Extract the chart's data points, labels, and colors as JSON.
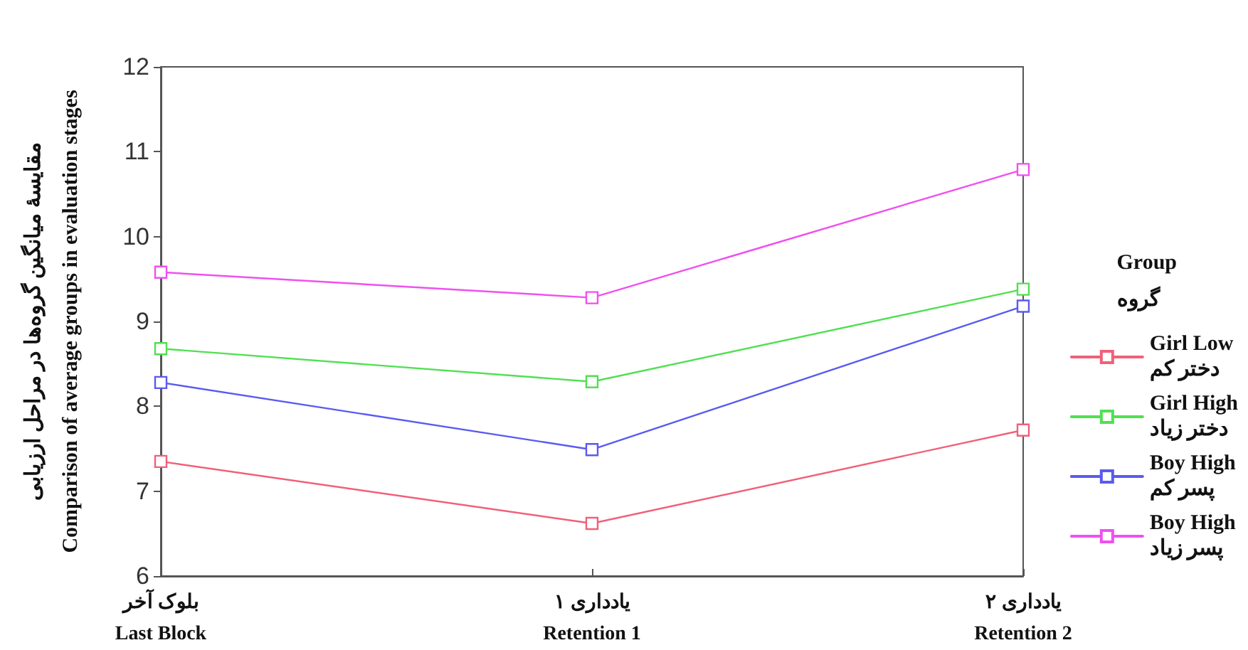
{
  "chart_data": {
    "type": "line",
    "ylabel": "مقایسهٔ میانگین گروه‌ها در مراحل ارزیابی\nComparison of average groups in evaluation stages",
    "legend_title": "Group\nگروه",
    "categories": [
      "بلوک آخر\nLast Block",
      "یادداری ۱\nRetention 1",
      "یادداری ۲\nRetention 2"
    ],
    "series": [
      {
        "name": "Girl Low\nدختر کم",
        "color": "#f0607a",
        "values": [
          7.35,
          6.62,
          7.72
        ]
      },
      {
        "name": "Girl High\nدختر زیاد",
        "color": "#50e050",
        "values": [
          8.68,
          8.29,
          9.38
        ]
      },
      {
        "name": "Boy High\nپسر کم",
        "color": "#5a5af0",
        "values": [
          8.28,
          7.49,
          9.18
        ]
      },
      {
        "name": "Boy High\nپسر زیاد",
        "color": "#f050f0",
        "values": [
          9.58,
          9.28,
          10.79
        ]
      }
    ],
    "ylim": [
      6,
      12
    ],
    "yticks": [
      6,
      7,
      8,
      9,
      10,
      11,
      12
    ],
    "marker": "square",
    "line_style": "solid",
    "legend": "right",
    "grid": false
  }
}
